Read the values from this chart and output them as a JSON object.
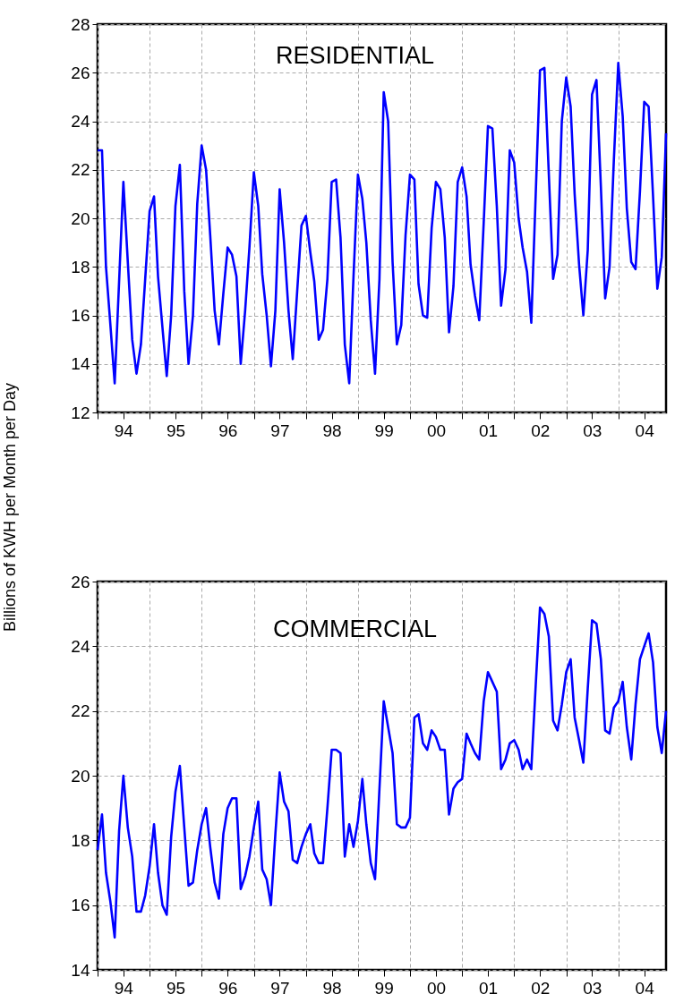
{
  "chart_data": [
    {
      "type": "line",
      "title": "RESIDENTIAL",
      "ylabel": "Billions of KWH per Month per Day",
      "grid": true,
      "xlim": [
        "1994-01",
        "2004-12"
      ],
      "ylim": [
        12,
        28
      ],
      "yticks": [
        12,
        14,
        16,
        18,
        20,
        22,
        24,
        26,
        28
      ],
      "xticks": [
        {
          "value": "1994-01",
          "label": null
        },
        {
          "value": "1994-07",
          "label": "94"
        },
        {
          "value": "1995-01",
          "label": null
        },
        {
          "value": "1995-07",
          "label": "95"
        },
        {
          "value": "1996-01",
          "label": null
        },
        {
          "value": "1996-07",
          "label": "96"
        },
        {
          "value": "1997-01",
          "label": null
        },
        {
          "value": "1997-07",
          "label": "97"
        },
        {
          "value": "1998-01",
          "label": null
        },
        {
          "value": "1998-07",
          "label": "98"
        },
        {
          "value": "1999-01",
          "label": null
        },
        {
          "value": "1999-07",
          "label": "99"
        },
        {
          "value": "2000-01",
          "label": null
        },
        {
          "value": "2000-07",
          "label": "00"
        },
        {
          "value": "2001-01",
          "label": null
        },
        {
          "value": "2001-07",
          "label": "01"
        },
        {
          "value": "2002-01",
          "label": null
        },
        {
          "value": "2002-07",
          "label": "02"
        },
        {
          "value": "2003-01",
          "label": null
        },
        {
          "value": "2003-07",
          "label": "03"
        },
        {
          "value": "2004-01",
          "label": null
        },
        {
          "value": "2004-07",
          "label": "04"
        }
      ],
      "x": [
        "1994-01",
        "1994-02",
        "1994-03",
        "1994-04",
        "1994-05",
        "1994-06",
        "1994-07",
        "1994-08",
        "1994-09",
        "1994-10",
        "1994-11",
        "1994-12",
        "1995-01",
        "1995-02",
        "1995-03",
        "1995-04",
        "1995-05",
        "1995-06",
        "1995-07",
        "1995-08",
        "1995-09",
        "1995-10",
        "1995-11",
        "1995-12",
        "1996-01",
        "1996-02",
        "1996-03",
        "1996-04",
        "1996-05",
        "1996-06",
        "1996-07",
        "1996-08",
        "1996-09",
        "1996-10",
        "1996-11",
        "1996-12",
        "1997-01",
        "1997-02",
        "1997-03",
        "1997-04",
        "1997-05",
        "1997-06",
        "1997-07",
        "1997-08",
        "1997-09",
        "1997-10",
        "1997-11",
        "1997-12",
        "1998-01",
        "1998-02",
        "1998-03",
        "1998-04",
        "1998-05",
        "1998-06",
        "1998-07",
        "1998-08",
        "1998-09",
        "1998-10",
        "1998-11",
        "1998-12",
        "1999-01",
        "1999-02",
        "1999-03",
        "1999-04",
        "1999-05",
        "1999-06",
        "1999-07",
        "1999-08",
        "1999-09",
        "1999-10",
        "1999-11",
        "1999-12",
        "2000-01",
        "2000-02",
        "2000-03",
        "2000-04",
        "2000-05",
        "2000-06",
        "2000-07",
        "2000-08",
        "2000-09",
        "2000-10",
        "2000-11",
        "2000-12",
        "2001-01",
        "2001-02",
        "2001-03",
        "2001-04",
        "2001-05",
        "2001-06",
        "2001-07",
        "2001-08",
        "2001-09",
        "2001-10",
        "2001-11",
        "2001-12",
        "2002-01",
        "2002-02",
        "2002-03",
        "2002-04",
        "2002-05",
        "2002-06",
        "2002-07",
        "2002-08",
        "2002-09",
        "2002-10",
        "2002-11",
        "2002-12",
        "2003-01",
        "2003-02",
        "2003-03",
        "2003-04",
        "2003-05",
        "2003-06",
        "2003-07",
        "2003-08",
        "2003-09",
        "2003-10",
        "2003-11",
        "2003-12",
        "2004-01",
        "2004-02",
        "2004-03",
        "2004-04",
        "2004-05",
        "2004-06",
        "2004-07",
        "2004-08",
        "2004-09",
        "2004-10",
        "2004-11",
        "2004-12"
      ],
      "series": [
        {
          "color": "#0000ff",
          "values": [
            22.8,
            22.8,
            18.0,
            15.6,
            13.2,
            17.4,
            21.5,
            18.2,
            15.0,
            13.6,
            14.8,
            17.5,
            20.3,
            20.9,
            17.6,
            15.5,
            13.5,
            16.0,
            20.5,
            22.2,
            17.0,
            14.0,
            16.0,
            20.6,
            23.0,
            22.0,
            19.3,
            16.2,
            14.8,
            16.9,
            18.8,
            18.5,
            17.6,
            14.0,
            16.2,
            18.8,
            21.9,
            20.5,
            17.7,
            16.0,
            13.9,
            16.2,
            21.2,
            19.0,
            16.2,
            14.2,
            17.0,
            19.7,
            20.1,
            18.6,
            17.4,
            15.0,
            15.4,
            17.5,
            21.5,
            21.6,
            19.2,
            14.8,
            13.2,
            17.6,
            21.8,
            20.8,
            19.0,
            15.8,
            13.6,
            17.5,
            25.2,
            24.0,
            18.2,
            14.8,
            15.6,
            19.3,
            21.8,
            21.6,
            17.3,
            16.0,
            15.9,
            19.6,
            21.5,
            21.2,
            19.2,
            15.3,
            17.2,
            21.5,
            22.1,
            20.9,
            18.1,
            16.8,
            15.8,
            19.8,
            23.8,
            23.7,
            20.5,
            16.4,
            17.9,
            22.8,
            22.3,
            20.0,
            18.8,
            17.8,
            15.7,
            21.0,
            26.1,
            26.2,
            21.8,
            17.5,
            18.5,
            24.0,
            25.8,
            24.6,
            21.0,
            18.1,
            16.0,
            18.7,
            25.1,
            25.7,
            21.3,
            16.7,
            18.0,
            22.4,
            26.4,
            24.2,
            20.4,
            18.2,
            17.9,
            21.1,
            24.8,
            24.6,
            20.9,
            17.1,
            18.4,
            23.5
          ]
        }
      ]
    },
    {
      "type": "line",
      "title": "COMMERCIAL",
      "grid": true,
      "xlim": [
        "1994-01",
        "2004-12"
      ],
      "ylim": [
        14,
        26
      ],
      "yticks": [
        14,
        16,
        18,
        20,
        22,
        24,
        26
      ],
      "xticks": [
        {
          "value": "1994-01",
          "label": null
        },
        {
          "value": "1994-07",
          "label": "94"
        },
        {
          "value": "1995-01",
          "label": null
        },
        {
          "value": "1995-07",
          "label": "95"
        },
        {
          "value": "1996-01",
          "label": null
        },
        {
          "value": "1996-07",
          "label": "96"
        },
        {
          "value": "1997-01",
          "label": null
        },
        {
          "value": "1997-07",
          "label": "97"
        },
        {
          "value": "1998-01",
          "label": null
        },
        {
          "value": "1998-07",
          "label": "98"
        },
        {
          "value": "1999-01",
          "label": null
        },
        {
          "value": "1999-07",
          "label": "99"
        },
        {
          "value": "2000-01",
          "label": null
        },
        {
          "value": "2000-07",
          "label": "00"
        },
        {
          "value": "2001-01",
          "label": null
        },
        {
          "value": "2001-07",
          "label": "01"
        },
        {
          "value": "2002-01",
          "label": null
        },
        {
          "value": "2002-07",
          "label": "02"
        },
        {
          "value": "2003-01",
          "label": null
        },
        {
          "value": "2003-07",
          "label": "03"
        },
        {
          "value": "2004-01",
          "label": null
        },
        {
          "value": "2004-07",
          "label": "04"
        }
      ],
      "x": [
        "1994-01",
        "1994-02",
        "1994-03",
        "1994-04",
        "1994-05",
        "1994-06",
        "1994-07",
        "1994-08",
        "1994-09",
        "1994-10",
        "1994-11",
        "1994-12",
        "1995-01",
        "1995-02",
        "1995-03",
        "1995-04",
        "1995-05",
        "1995-06",
        "1995-07",
        "1995-08",
        "1995-09",
        "1995-10",
        "1995-11",
        "1995-12",
        "1996-01",
        "1996-02",
        "1996-03",
        "1996-04",
        "1996-05",
        "1996-06",
        "1996-07",
        "1996-08",
        "1996-09",
        "1996-10",
        "1996-11",
        "1996-12",
        "1997-01",
        "1997-02",
        "1997-03",
        "1997-04",
        "1997-05",
        "1997-06",
        "1997-07",
        "1997-08",
        "1997-09",
        "1997-10",
        "1997-11",
        "1997-12",
        "1998-01",
        "1998-02",
        "1998-03",
        "1998-04",
        "1998-05",
        "1998-06",
        "1998-07",
        "1998-08",
        "1998-09",
        "1998-10",
        "1998-11",
        "1998-12",
        "1999-01",
        "1999-02",
        "1999-03",
        "1999-04",
        "1999-05",
        "1999-06",
        "1999-07",
        "1999-08",
        "1999-09",
        "1999-10",
        "1999-11",
        "1999-12",
        "2000-01",
        "2000-02",
        "2000-03",
        "2000-04",
        "2000-05",
        "2000-06",
        "2000-07",
        "2000-08",
        "2000-09",
        "2000-10",
        "2000-11",
        "2000-12",
        "2001-01",
        "2001-02",
        "2001-03",
        "2001-04",
        "2001-05",
        "2001-06",
        "2001-07",
        "2001-08",
        "2001-09",
        "2001-10",
        "2001-11",
        "2001-12",
        "2002-01",
        "2002-02",
        "2002-03",
        "2002-04",
        "2002-05",
        "2002-06",
        "2002-07",
        "2002-08",
        "2002-09",
        "2002-10",
        "2002-11",
        "2002-12",
        "2003-01",
        "2003-02",
        "2003-03",
        "2003-04",
        "2003-05",
        "2003-06",
        "2003-07",
        "2003-08",
        "2003-09",
        "2003-10",
        "2003-11",
        "2003-12",
        "2004-01",
        "2004-02",
        "2004-03",
        "2004-04",
        "2004-05",
        "2004-06",
        "2004-07",
        "2004-08",
        "2004-09",
        "2004-10",
        "2004-11",
        "2004-12"
      ],
      "series": [
        {
          "color": "#0000ff",
          "values": [
            17.7,
            18.8,
            17.0,
            16.1,
            15.0,
            18.3,
            20.0,
            18.4,
            17.5,
            15.8,
            15.8,
            16.3,
            17.2,
            18.5,
            17.0,
            16.0,
            15.7,
            18.1,
            19.5,
            20.3,
            18.4,
            16.6,
            16.7,
            17.7,
            18.5,
            19.0,
            17.8,
            16.7,
            16.2,
            18.2,
            19.0,
            19.3,
            19.3,
            16.5,
            16.9,
            17.5,
            18.4,
            19.2,
            17.1,
            16.8,
            16.0,
            18.2,
            20.1,
            19.2,
            18.9,
            17.4,
            17.3,
            17.8,
            18.2,
            18.5,
            17.6,
            17.3,
            17.3,
            19.0,
            20.8,
            20.8,
            20.7,
            17.5,
            18.5,
            17.8,
            18.6,
            19.9,
            18.5,
            17.3,
            16.8,
            19.6,
            22.3,
            21.5,
            20.7,
            18.5,
            18.4,
            18.4,
            18.7,
            21.8,
            21.9,
            21.0,
            20.8,
            21.4,
            21.2,
            20.8,
            20.8,
            18.8,
            19.6,
            19.8,
            19.9,
            21.3,
            21.0,
            20.7,
            20.5,
            22.3,
            23.2,
            22.9,
            22.6,
            20.2,
            20.5,
            21.0,
            21.1,
            20.8,
            20.2,
            20.5,
            20.2,
            22.8,
            25.2,
            25.0,
            24.3,
            21.7,
            21.4,
            22.2,
            23.2,
            23.6,
            21.8,
            21.1,
            20.4,
            22.7,
            24.8,
            24.7,
            23.6,
            21.4,
            21.3,
            22.1,
            22.3,
            22.9,
            21.5,
            20.5,
            22.2,
            23.6,
            24.0,
            24.4,
            23.5,
            21.5,
            20.7,
            22.0
          ]
        }
      ]
    }
  ]
}
